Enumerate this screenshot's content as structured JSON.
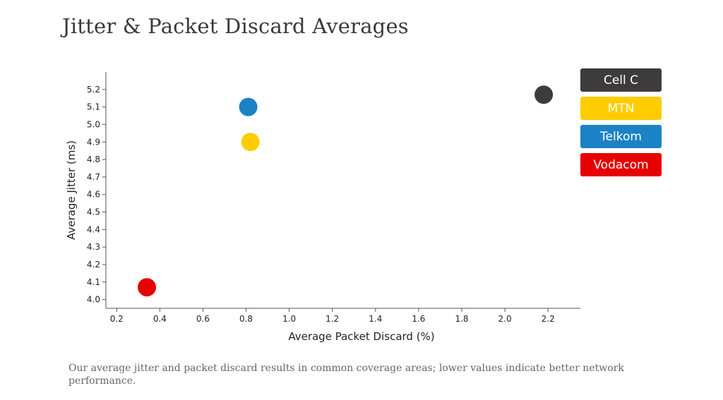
{
  "title": "Jitter & Packet Discard Averages",
  "caption": "Our average jitter and packet discard results in common coverage areas; lower values indicate better network performance.",
  "chart_data": {
    "type": "scatter",
    "title": "Jitter & Packet Discard Averages",
    "xlabel": "Average Packet Discard (%)",
    "ylabel": "Average Jitter (ms)",
    "xlim": [
      0.15,
      2.35
    ],
    "ylim": [
      3.95,
      5.3
    ],
    "xticks": [
      "0.2",
      "0.4",
      "0.6",
      "0.8",
      "1.0",
      "1.2",
      "1.4",
      "1.6",
      "1.8",
      "2.0",
      "2.2"
    ],
    "yticks": [
      "4.0",
      "4.1",
      "4.2",
      "4.3",
      "4.4",
      "4.5",
      "4.6",
      "4.7",
      "4.8",
      "4.9",
      "5.0",
      "5.1",
      "5.2"
    ],
    "legend_position": "right",
    "series": [
      {
        "name": "Cell C",
        "color": "#3d3b3c",
        "x": 2.18,
        "y": 5.17
      },
      {
        "name": "MTN",
        "color": "#ffcc00",
        "x": 0.82,
        "y": 4.9
      },
      {
        "name": "Telkom",
        "color": "#1b82c5",
        "x": 0.81,
        "y": 5.1
      },
      {
        "name": "Vodacom",
        "color": "#e60000",
        "x": 0.34,
        "y": 4.07
      }
    ]
  }
}
